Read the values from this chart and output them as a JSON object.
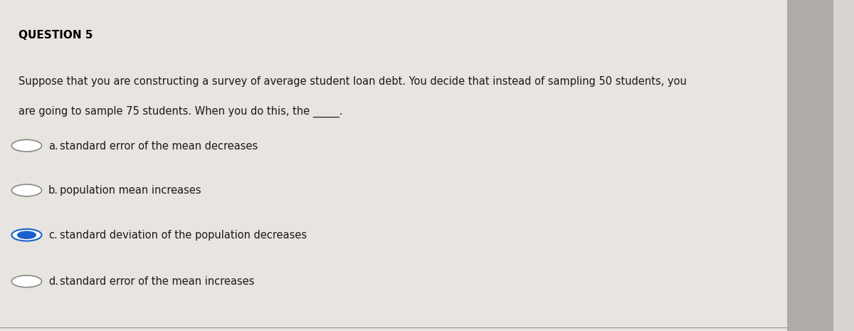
{
  "background_color": "#d8d4d0",
  "panel_color": "#e8e4e0",
  "title": "QUESTION 5",
  "question_text_line1": "Suppose that you are constructing a survey of average student loan debt. You decide that instead of sampling 50 students, you",
  "question_text_line2": "are going to sample 75 students. When you do this, the _____.",
  "options": [
    {
      "label": "a.",
      "text": "standard error of the mean decreases",
      "selected": false
    },
    {
      "label": "b.",
      "text": "population mean increases",
      "selected": false
    },
    {
      "label": "c.",
      "text": "standard deviation of the population decreases",
      "selected": true
    },
    {
      "label": "d.",
      "text": "standard error of the mean increases",
      "selected": false
    }
  ],
  "title_fontsize": 11,
  "text_fontsize": 10.5,
  "option_fontsize": 10.5,
  "text_color": "#1a1a1a",
  "title_color": "#000000",
  "selected_color": "#1a5fcc",
  "unselected_color": "#888888",
  "right_bar_color": "#b0aba6"
}
